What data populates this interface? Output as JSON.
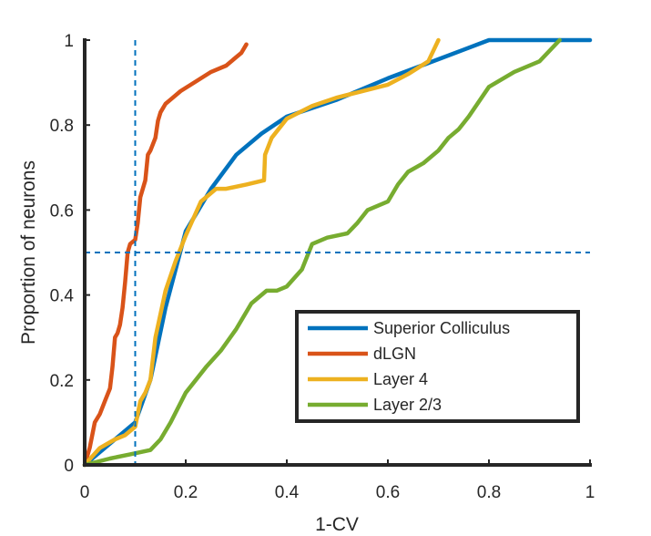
{
  "chart_data": {
    "type": "line",
    "xlabel": "1-CV",
    "ylabel": "Proportion of neurons",
    "xlim": [
      0,
      1
    ],
    "ylim": [
      0,
      1
    ],
    "xticks": [
      0,
      0.2,
      0.4,
      0.6,
      0.8,
      1
    ],
    "yticks": [
      0,
      0.2,
      0.4,
      0.6,
      0.8,
      1
    ],
    "xtick_labels": [
      "0",
      "0.2",
      "0.4",
      "0.6",
      "0.8",
      "1"
    ],
    "ytick_labels": [
      "0",
      "0.2",
      "0.4",
      "0.6",
      "0.8",
      "1"
    ],
    "grid": false,
    "legend_position": "bottom-right",
    "reference_lines": [
      {
        "orientation": "vertical",
        "x": 0.1,
        "style": "dashed",
        "color": "#0072BD"
      },
      {
        "orientation": "horizontal",
        "y": 0.5,
        "style": "dashed",
        "color": "#0072BD"
      }
    ],
    "series": [
      {
        "name": "Superior Colliculus",
        "color": "#0072BD",
        "x": [
          0,
          0.1,
          0.13,
          0.16,
          0.2,
          0.25,
          0.3,
          0.35,
          0.4,
          0.5,
          0.6,
          0.7,
          0.8,
          0.9,
          1.0
        ],
        "y": [
          0,
          0.1,
          0.2,
          0.37,
          0.55,
          0.65,
          0.73,
          0.78,
          0.82,
          0.86,
          0.91,
          0.955,
          1.0,
          1.0,
          1.0
        ]
      },
      {
        "name": "dLGN",
        "color": "#D95319",
        "x": [
          0,
          0.01,
          0.02,
          0.03,
          0.04,
          0.05,
          0.055,
          0.06,
          0.065,
          0.07,
          0.075,
          0.08,
          0.085,
          0.09,
          0.1,
          0.105,
          0.11,
          0.12,
          0.125,
          0.13,
          0.14,
          0.145,
          0.15,
          0.16,
          0.17,
          0.19,
          0.21,
          0.23,
          0.25,
          0.28,
          0.3,
          0.31,
          0.32
        ],
        "y": [
          0,
          0.04,
          0.1,
          0.12,
          0.15,
          0.18,
          0.23,
          0.3,
          0.31,
          0.33,
          0.37,
          0.43,
          0.5,
          0.52,
          0.53,
          0.57,
          0.63,
          0.67,
          0.73,
          0.74,
          0.77,
          0.81,
          0.83,
          0.85,
          0.86,
          0.88,
          0.895,
          0.91,
          0.925,
          0.94,
          0.96,
          0.97,
          0.99
        ]
      },
      {
        "name": "Layer 4",
        "color": "#EDB120",
        "x": [
          0,
          0.03,
          0.06,
          0.08,
          0.1,
          0.11,
          0.12,
          0.13,
          0.14,
          0.16,
          0.18,
          0.2,
          0.23,
          0.26,
          0.28,
          0.32,
          0.355,
          0.357,
          0.37,
          0.4,
          0.45,
          0.5,
          0.55,
          0.6,
          0.64,
          0.68,
          0.7
        ],
        "y": [
          0,
          0.04,
          0.06,
          0.07,
          0.09,
          0.15,
          0.17,
          0.2,
          0.3,
          0.41,
          0.48,
          0.54,
          0.62,
          0.65,
          0.65,
          0.66,
          0.67,
          0.73,
          0.77,
          0.815,
          0.845,
          0.865,
          0.88,
          0.895,
          0.92,
          0.95,
          1.0
        ]
      },
      {
        "name": "Layer 2/3",
        "color": "#77AC30",
        "x": [
          0,
          0.05,
          0.09,
          0.13,
          0.15,
          0.17,
          0.2,
          0.22,
          0.24,
          0.27,
          0.3,
          0.33,
          0.36,
          0.38,
          0.4,
          0.43,
          0.45,
          0.48,
          0.52,
          0.54,
          0.56,
          0.6,
          0.62,
          0.64,
          0.67,
          0.68,
          0.7,
          0.72,
          0.74,
          0.76,
          0.8,
          0.85,
          0.9,
          0.94
        ],
        "y": [
          0,
          0.015,
          0.025,
          0.035,
          0.06,
          0.1,
          0.17,
          0.2,
          0.23,
          0.27,
          0.32,
          0.38,
          0.41,
          0.41,
          0.42,
          0.46,
          0.52,
          0.535,
          0.545,
          0.57,
          0.6,
          0.62,
          0.66,
          0.69,
          0.71,
          0.72,
          0.74,
          0.77,
          0.79,
          0.82,
          0.89,
          0.925,
          0.95,
          1.0
        ]
      }
    ]
  }
}
